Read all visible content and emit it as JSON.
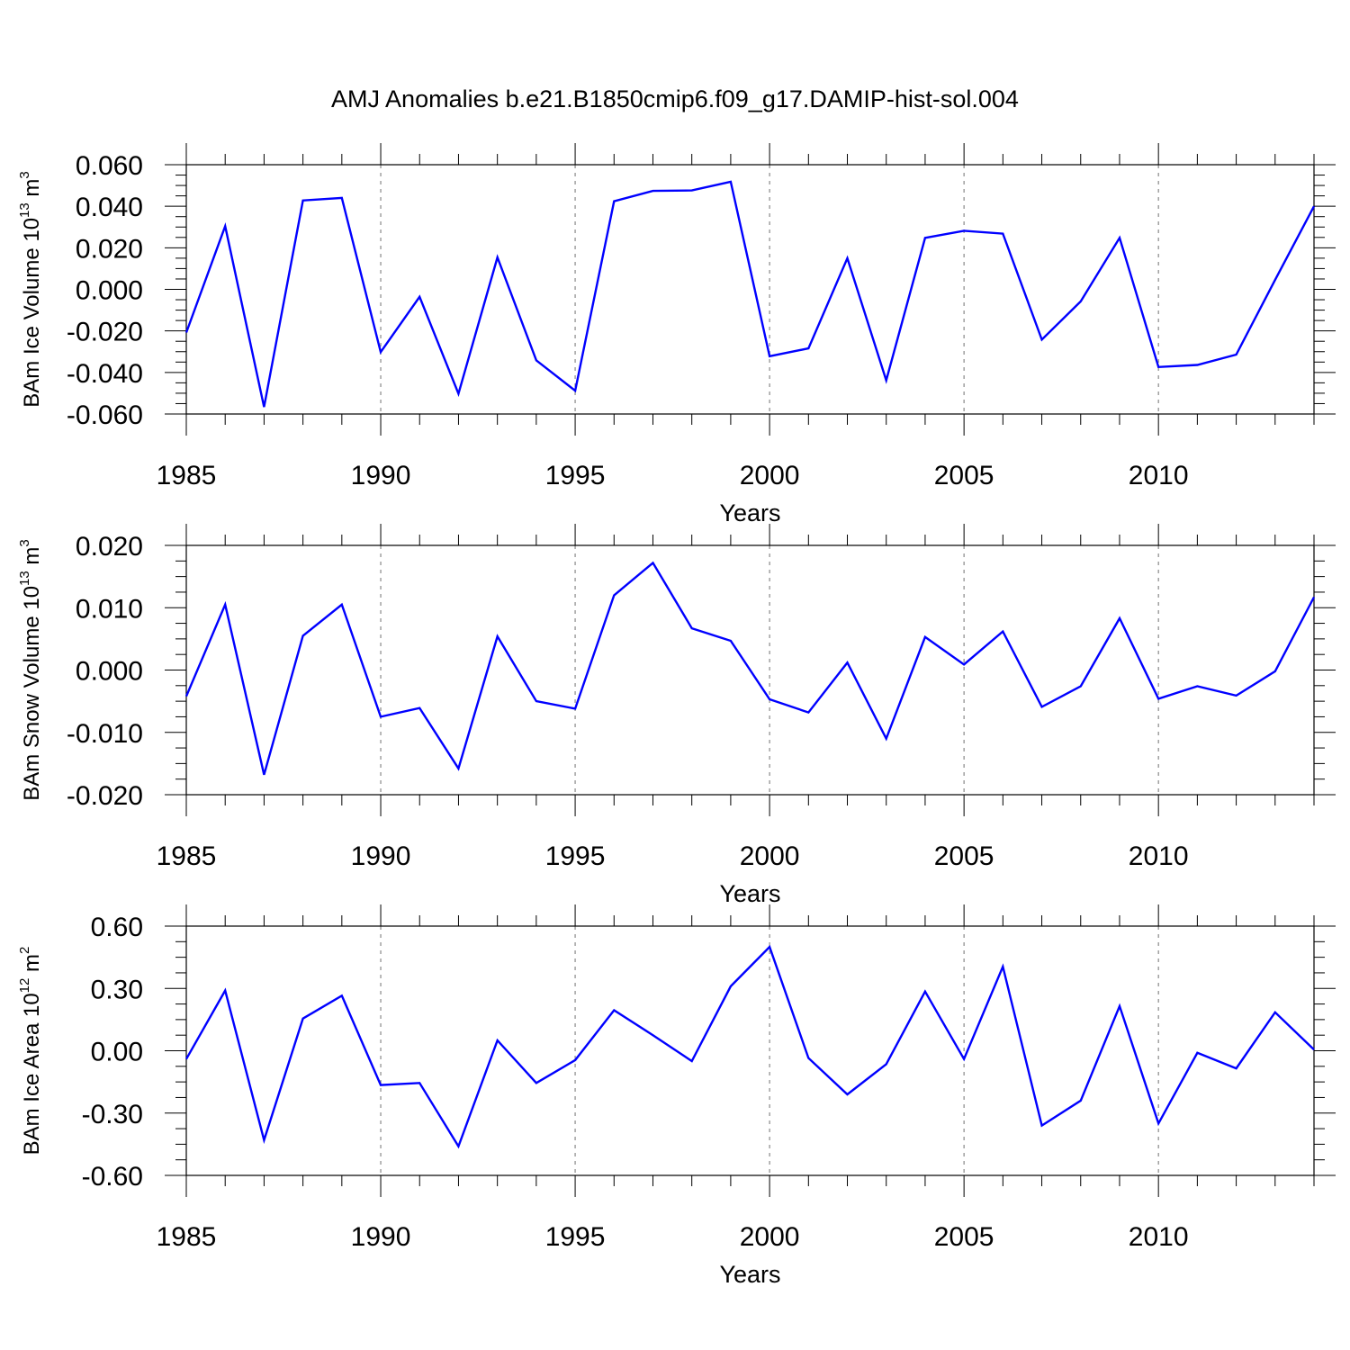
{
  "figure_title": "AMJ Anomalies b.e21.B1850cmip6.f09_g17.DAMIP-hist-sol.004",
  "chart_data": [
    {
      "type": "line",
      "xlabel": "Years",
      "ylabel": {
        "text": "BAm Ice Volume 10",
        "sup1": "13",
        "mid": " m",
        "sup2": "3"
      },
      "xlim": [
        1985,
        2014
      ],
      "ylim": [
        -0.06,
        0.06
      ],
      "yticks": [
        0.06,
        0.04,
        0.02,
        0.0,
        -0.02,
        -0.04,
        -0.06
      ],
      "ytick_labels": [
        "0.060",
        "0.040",
        "0.020",
        "0.000",
        "-0.020",
        "-0.040",
        "-0.060"
      ],
      "xticks": [
        1985,
        1990,
        1995,
        2000,
        2005,
        2010
      ],
      "xtick_labels": [
        "1985",
        "1990",
        "1995",
        "2000",
        "2005",
        "2010"
      ],
      "reference_lines_x": [
        1990,
        1995,
        2000,
        2005,
        2010
      ],
      "line_color": "#0000ff",
      "series": [
        {
          "x": [
            1985,
            1986,
            1987,
            1988,
            1989,
            1990,
            1991,
            1992,
            1993,
            1994,
            1995,
            1996,
            1997,
            1998,
            1999,
            2000,
            2001,
            2002,
            2003,
            2004,
            2005,
            2006,
            2007,
            2008,
            2009,
            2010,
            2011,
            2012,
            2013,
            2014
          ],
          "values": [
            -0.0208,
            0.0304,
            -0.0566,
            0.0428,
            0.044,
            -0.0302,
            -0.0036,
            -0.0502,
            0.0154,
            -0.0342,
            -0.0488,
            0.0424,
            0.0474,
            0.0476,
            0.0518,
            -0.0322,
            -0.0284,
            0.015,
            -0.0438,
            0.0248,
            0.0282,
            0.0268,
            -0.0242,
            -0.0058,
            0.0248,
            -0.0374,
            -0.0364,
            -0.0314,
            0.0046,
            0.04
          ]
        }
      ]
    },
    {
      "type": "line",
      "xlabel": "Years",
      "ylabel": {
        "text": "BAm Snow Volume 10",
        "sup1": "13",
        "mid": " m",
        "sup2": "3"
      },
      "xlim": [
        1985,
        2014
      ],
      "ylim": [
        -0.02,
        0.02
      ],
      "yticks": [
        0.02,
        0.01,
        0.0,
        -0.01,
        -0.02
      ],
      "ytick_labels": [
        "0.020",
        "0.010",
        "0.000",
        "-0.010",
        "-0.020"
      ],
      "xticks": [
        1985,
        1990,
        1995,
        2000,
        2005,
        2010
      ],
      "xtick_labels": [
        "1985",
        "1990",
        "1995",
        "2000",
        "2005",
        "2010"
      ],
      "reference_lines_x": [
        1990,
        1995,
        2000,
        2005,
        2010
      ],
      "line_color": "#0000ff",
      "series": [
        {
          "x": [
            1985,
            1986,
            1987,
            1988,
            1989,
            1990,
            1991,
            1992,
            1993,
            1994,
            1995,
            1996,
            1997,
            1998,
            1999,
            2000,
            2001,
            2002,
            2003,
            2004,
            2005,
            2006,
            2007,
            2008,
            2009,
            2010,
            2011,
            2012,
            2013,
            2014
          ],
          "values": [
            -0.0042,
            0.0105,
            -0.0168,
            0.0055,
            0.0105,
            -0.0075,
            -0.0061,
            -0.0158,
            0.0054,
            -0.005,
            -0.0062,
            0.012,
            0.0172,
            0.0067,
            0.0047,
            -0.0047,
            -0.0068,
            0.0012,
            -0.011,
            0.0053,
            0.0009,
            0.0062,
            -0.0059,
            -0.0026,
            0.0083,
            -0.0046,
            -0.0026,
            -0.0041,
            -0.0002,
            0.0117
          ]
        }
      ]
    },
    {
      "type": "line",
      "xlabel": "Years",
      "ylabel": {
        "text": "BAm Ice Area 10",
        "sup1": "12",
        "mid": " m",
        "sup2": "2"
      },
      "xlim": [
        1985,
        2014
      ],
      "ylim": [
        -0.6,
        0.6
      ],
      "yticks": [
        0.6,
        0.3,
        0.0,
        -0.3,
        -0.6
      ],
      "ytick_labels": [
        "0.60",
        "0.30",
        "0.00",
        "-0.30",
        "-0.60"
      ],
      "xticks": [
        1985,
        1990,
        1995,
        2000,
        2005,
        2010
      ],
      "xtick_labels": [
        "1985",
        "1990",
        "1995",
        "2000",
        "2005",
        "2010"
      ],
      "reference_lines_x": [
        1990,
        1995,
        2000,
        2005,
        2010
      ],
      "line_color": "#0000ff",
      "series": [
        {
          "x": [
            1985,
            1986,
            1987,
            1988,
            1989,
            1990,
            1991,
            1992,
            1993,
            1994,
            1995,
            1996,
            1997,
            1998,
            1999,
            2000,
            2001,
            2002,
            2003,
            2004,
            2005,
            2006,
            2007,
            2008,
            2009,
            2010,
            2011,
            2012,
            2013,
            2014
          ],
          "values": [
            -0.04,
            0.29,
            -0.43,
            0.155,
            0.265,
            -0.165,
            -0.155,
            -0.46,
            0.05,
            -0.155,
            -0.045,
            0.195,
            0.075,
            -0.05,
            0.31,
            0.5,
            -0.035,
            -0.21,
            -0.065,
            0.285,
            -0.04,
            0.405,
            -0.36,
            -0.24,
            0.215,
            -0.35,
            -0.01,
            -0.085,
            0.185,
            0.005
          ]
        }
      ]
    }
  ]
}
